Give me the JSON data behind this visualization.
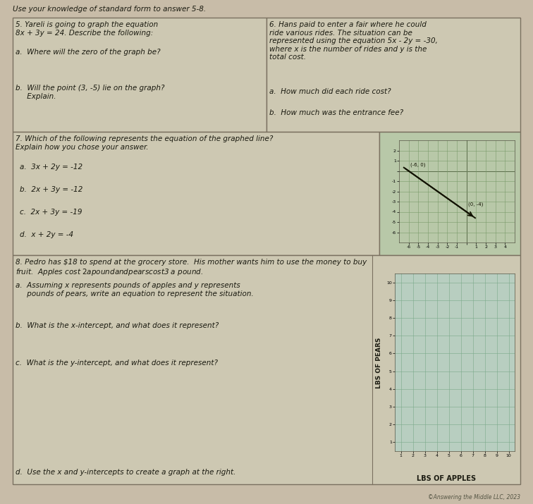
{
  "page_bg": "#c8bca8",
  "cell_bg": "#cdc8b2",
  "border_color": "#7a7060",
  "text_color": "#1a1a10",
  "title_text": "Use your knowledge of standard form to answer 5-8.",
  "q5_title": "5. Yareli is going to graph the equation\n8x + 3y = 24. Describe the following:",
  "q5a": "a.  Where will the zero of the graph be?",
  "q5b": "b.  Will the point (3, -5) lie on the graph?\n     Explain.",
  "q6_title": "6. Hans paid to enter a fair where he could\nride various rides. The situation can be\nrepresented using the equation 5x - 2y = -30,\nwhere x is the number of rides and y is the\ntotal cost.",
  "q6a": "a.  How much did each ride cost?",
  "q6b": "b.  How much was the entrance fee?",
  "q7_title": "7. Which of the following represents the equation of the graphed line?\nExplain how you chose your answer.",
  "q7a": "a.  3x + 2y = -12",
  "q7b": "b.  2x + 3y = -12",
  "q7c": "c.  2x + 3y = -19",
  "q7d": "d.  x + 2y = -4",
  "q8_title": "8. Pedro has $18 to spend at the grocery store.  His mother wants him to use the money to buy\nfruit.  Apples cost $2 a pound and pears cost $3 a pound.",
  "q8a": "a.  Assuming x represents pounds of apples and y represents\n     pounds of pears, write an equation to represent the situation.",
  "q8b": "b.  What is the x-intercept, and what does it represent?",
  "q8c": "c.  What is the y-intercept, and what does it represent?",
  "q8d": "d.  Use the x and y-intercepts to create a graph at the right.",
  "copyright": "©Answering the Middle LLC, 2023",
  "graph7_pt1_label": "(-6, 0)",
  "graph7_pt2_label": "(0, -4)",
  "graph8_xlabel": "LBS OF APPLES",
  "graph8_ylabel": "LBS OF PEARS"
}
